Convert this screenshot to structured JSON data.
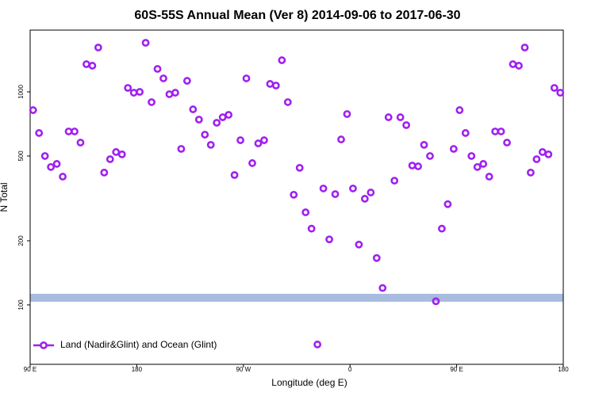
{
  "chart_data": {
    "type": "scatter",
    "title": "60S-55S Annual Mean (Ver 8)   2014-09-06 to 2017-06-30",
    "xlabel": "Longitude (deg E)",
    "ylabel": "N Total",
    "xlim": [
      90,
      540
    ],
    "xticks": [
      {
        "value": 90,
        "label": "90 E"
      },
      180,
      {
        "value": 270,
        "label": "90 W"
      },
      {
        "value": 360,
        "label": "0"
      },
      {
        "value": 450,
        "label": "90 E"
      },
      {
        "value": 540,
        "label": "180"
      }
    ],
    "ylim": [
      52.6,
      1950
    ],
    "yscale": "log",
    "yticks": [
      100,
      200,
      500,
      1000
    ],
    "legend": "lower left",
    "reference_band": {
      "value": 108,
      "color": "#a7bcdf"
    },
    "x": [
      92.5,
      97.5,
      102.5,
      107.5,
      112.5,
      117.5,
      122.5,
      127.5,
      132.5,
      137.5,
      142.5,
      147.5,
      152.5,
      157.5,
      162.5,
      167.5,
      172.5,
      177.5,
      182.5,
      187.5,
      192.5,
      197.5,
      202.5,
      207.5,
      212.5,
      217.5,
      222.5,
      227.5,
      232.5,
      237.5,
      242.5,
      247.5,
      252.5,
      257.5,
      262.5,
      267.5,
      272.5,
      277.5,
      282.5,
      287.5,
      292.5,
      297.5,
      302.5,
      307.5,
      312.5,
      317.5,
      322.5,
      327.5,
      332.5,
      337.5,
      342.5,
      347.5,
      352.5,
      357.5,
      362.5,
      367.5,
      372.5,
      377.5,
      382.5,
      387.5,
      392.5,
      397.5,
      402.5,
      407.5,
      412.5,
      417.5,
      422.5,
      427.5,
      432.5,
      437.5,
      442.5,
      447.5,
      452.5,
      457.5,
      462.5,
      467.5,
      472.5,
      477.5,
      482.5,
      487.5,
      492.5,
      497.5,
      502.5,
      507.5,
      512.5,
      517.5,
      522.5,
      527.5,
      532.5,
      537.5
    ],
    "series": [
      {
        "name": "Land (Nadir&Glint) and Ocean (Glint)",
        "color": "#a020f0",
        "values": [
          821,
          641,
          500,
          444,
          459,
          400,
          652,
          652,
          578,
          1349,
          1327,
          1615,
          418,
          483,
          522,
          509,
          1044,
          991,
          1000,
          1700,
          895,
          1282,
          1157,
          975,
          991,
          540,
          1127,
          828,
          741,
          630,
          564,
          716,
          760,
          780,
          407,
          593,
          1157,
          463,
          573,
          593,
          1090,
          1071,
          1408,
          895,
          329,
          440,
          272,
          228,
          65.2,
          352,
          203,
          331,
          598,
          787,
          352,
          192,
          315,
          337,
          166,
          120,
          760,
          383,
          760,
          698,
          451,
          447,
          564,
          500,
          104,
          228,
          297,
          540,
          821,
          641,
          500,
          444,
          459,
          400,
          652,
          652,
          578,
          1349,
          1327,
          1615,
          418,
          483,
          522,
          509,
          1044,
          991
        ]
      }
    ]
  }
}
